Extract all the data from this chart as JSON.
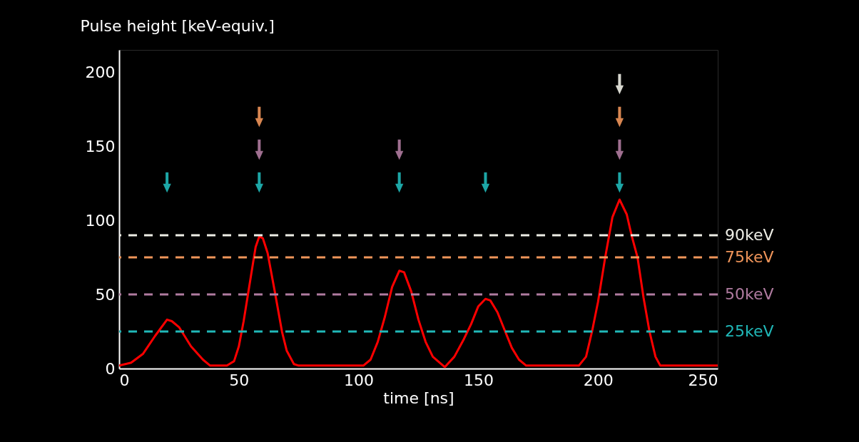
{
  "chart_data": {
    "type": "line",
    "xlabel": "time [ns]",
    "ylabel": "Pulse height [keV-equiv.]",
    "x": [
      0,
      5,
      10,
      15,
      20,
      22,
      25,
      30,
      35,
      38,
      45,
      48,
      50,
      52,
      55,
      57,
      58.5,
      60,
      62,
      65,
      68,
      70,
      73,
      75,
      102,
      105,
      108,
      111,
      114,
      117,
      119,
      122,
      125,
      128,
      131,
      136,
      140,
      144,
      147,
      150,
      153,
      155,
      158,
      161,
      164,
      167,
      170,
      192,
      195,
      197.5,
      200,
      203,
      206,
      209,
      212,
      214,
      216.5,
      219,
      221.5,
      224,
      226,
      250
    ],
    "series": [
      {
        "color": "#ff0000",
        "values": [
          2,
          4,
          10,
          22,
          33,
          32,
          28,
          15,
          6,
          2,
          2,
          5,
          15,
          32,
          62,
          82,
          89,
          88,
          78,
          52,
          25,
          12,
          3,
          2,
          2,
          6,
          18,
          35,
          55,
          66,
          65,
          52,
          33,
          18,
          8,
          1,
          8,
          20,
          30,
          42,
          47,
          46,
          38,
          26,
          14,
          6,
          2,
          2,
          8,
          25,
          45,
          75,
          102,
          114,
          104,
          90,
          75,
          48,
          25,
          8,
          2,
          2
        ]
      }
    ],
    "xlim": [
      0,
      250
    ],
    "ylim": [
      0,
      215
    ],
    "xticks": [
      0,
      50,
      100,
      150,
      200,
      250
    ],
    "yticks": [
      0,
      50,
      100,
      150,
      200
    ],
    "grid": false,
    "marker": "none",
    "line_style": "solid",
    "ref_lines": [
      {
        "axis": "y",
        "value": 90,
        "label": "90keV",
        "color": "#eeeee6",
        "line_style": "dashed"
      },
      {
        "axis": "y",
        "value": 75,
        "label": "75keV",
        "color": "#f0955a",
        "line_style": "dashed"
      },
      {
        "axis": "y",
        "value": 50,
        "label": "50keV",
        "color": "#b07ba0",
        "line_style": "dashed"
      },
      {
        "axis": "y",
        "value": 25,
        "label": "25keV",
        "color": "#20b8b8",
        "line_style": "dashed"
      }
    ]
  }
}
